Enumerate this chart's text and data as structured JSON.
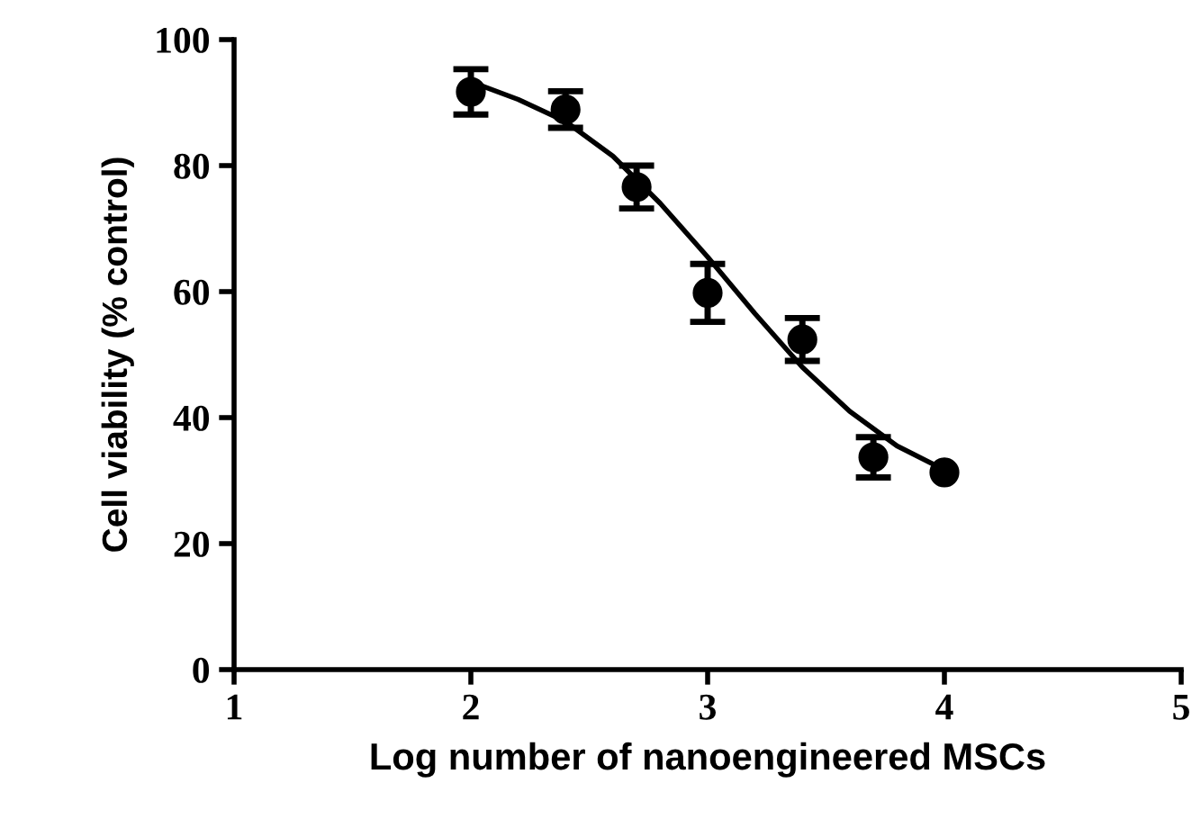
{
  "chart_data": {
    "type": "scatter",
    "xlabel": "Log number of nanoengineered MSCs",
    "ylabel": "Cell viability (% control)",
    "xlim": [
      1,
      5
    ],
    "xticks": [
      1,
      2,
      3,
      4,
      5
    ],
    "ylim": [
      0,
      100
    ],
    "yticks": [
      0,
      20,
      40,
      60,
      80,
      100
    ],
    "grid": false,
    "legend": false,
    "series": [
      {
        "color": "#000000",
        "marker": "circle",
        "x": [
          2.0,
          2.4,
          2.7,
          3.0,
          3.4,
          3.7,
          4.0
        ],
        "values": [
          91.7,
          88.9,
          76.6,
          59.8,
          52.4,
          33.7,
          31.3
        ],
        "errors": [
          3.6,
          2.9,
          3.4,
          4.6,
          3.4,
          3.2,
          null
        ]
      },
      {
        "type": "line",
        "color": "#000000",
        "marker": "none",
        "line_style": "solid",
        "x": [
          2.0,
          2.2,
          2.4,
          2.6,
          2.8,
          3.0,
          3.2,
          3.4,
          3.6,
          3.8,
          4.0
        ],
        "values": [
          93.3,
          90.5,
          87.0,
          81.5,
          74.0,
          65.5,
          56.5,
          48.0,
          41.0,
          35.5,
          31.7
        ]
      }
    ]
  }
}
